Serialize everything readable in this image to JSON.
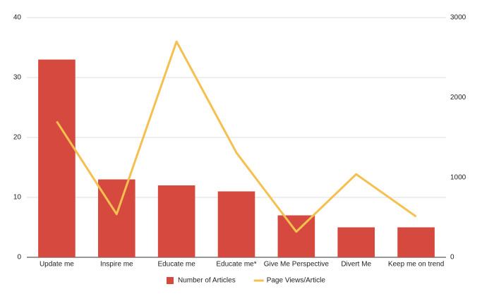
{
  "chart_data": {
    "type": "combo",
    "categories": [
      "Update me",
      "Inspire me",
      "Educate me",
      "Educate me*",
      "Give Me Perspective",
      "Divert Me",
      "Keep me on trend"
    ],
    "series": [
      {
        "name": "Number of Articles",
        "type": "bar",
        "color": "#d6493f",
        "values": [
          33,
          13,
          12,
          11,
          7,
          5,
          5
        ]
      },
      {
        "name": "Page Views/Article",
        "type": "line",
        "axis": "y2",
        "color": "#f4c04f",
        "values": [
          1700,
          540,
          2700,
          1310,
          320,
          1040,
          510
        ]
      }
    ],
    "ylim": [
      0,
      40
    ],
    "yticks": [
      0,
      10,
      20,
      30,
      40
    ],
    "y2lim": [
      0,
      3000
    ],
    "y2ticks": [
      0,
      1000,
      2000,
      3000
    ],
    "grid": true,
    "legend": "bottom"
  }
}
